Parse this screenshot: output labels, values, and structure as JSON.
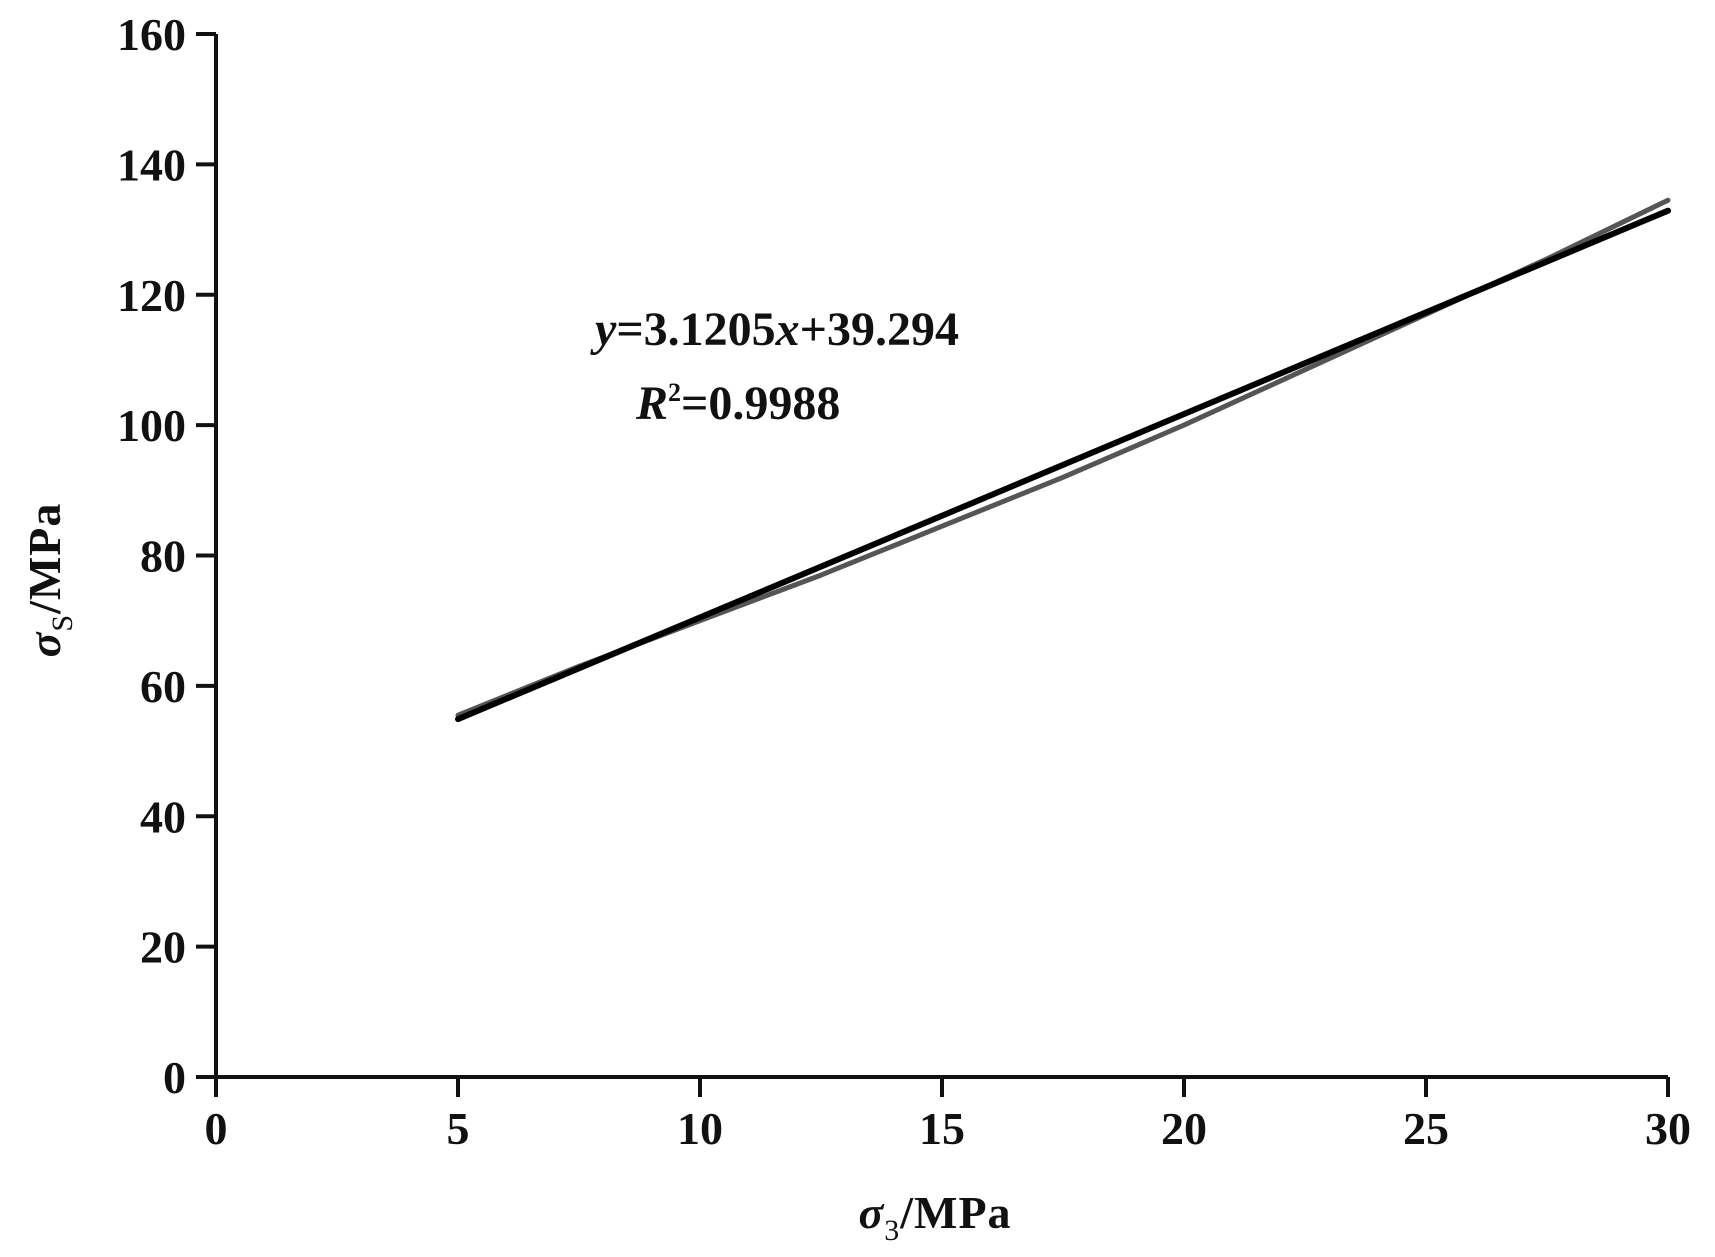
{
  "chart_data": {
    "type": "line",
    "x_axis": {
      "label_symbol": "σ",
      "label_subscript": "3",
      "label_unit": "/MPa",
      "range": [
        0,
        30
      ],
      "ticks": [
        "0",
        "5",
        "10",
        "15",
        "20",
        "25",
        "30"
      ]
    },
    "y_axis": {
      "label_symbol": "σ",
      "label_subscript": "S",
      "label_unit": "/MPa",
      "range": [
        0,
        160
      ],
      "ticks": [
        "0",
        "20",
        "40",
        "60",
        "80",
        "100",
        "120",
        "140",
        "160"
      ]
    },
    "series": [
      {
        "color": "#555555",
        "x": [
          5,
          7.5,
          10,
          12.5,
          15,
          17.5,
          20,
          22.5,
          25,
          27.5,
          30
        ],
        "y": [
          55.5,
          63,
          70,
          77,
          84.5,
          92,
          100,
          108.5,
          117,
          125.5,
          134.5
        ]
      },
      {
        "color": "#000000",
        "x": [
          5,
          30
        ],
        "y": [
          54.9,
          132.9
        ]
      }
    ],
    "annotation": {
      "equation_y": "y",
      "equation_mid": "=3.1205",
      "equation_x": "x",
      "equation_rest": "+39.294",
      "r2_symbol": "R",
      "r2_exponent": "2",
      "r2_value": "=0.9988"
    },
    "grid": false,
    "legend": "none"
  }
}
